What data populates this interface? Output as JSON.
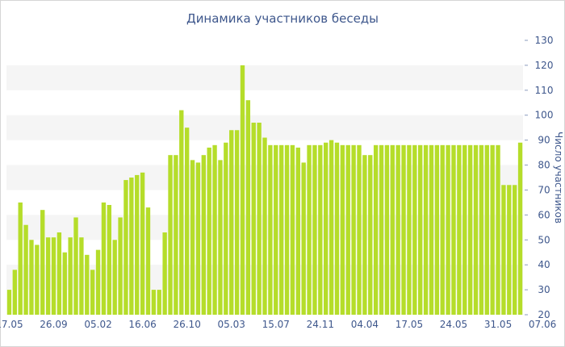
{
  "chart_data": {
    "type": "bar",
    "title": "Динамика участников беседы",
    "xlabel": "",
    "ylabel": "Число участников",
    "ylim": [
      20,
      130
    ],
    "yticks": [
      20,
      30,
      40,
      50,
      60,
      70,
      80,
      90,
      100,
      110,
      120,
      130
    ],
    "y_axis_side": "right",
    "bar_color": "#b5dd2a",
    "band_color": "#f5f5f5",
    "x_tick_labels": [
      {
        "label": "17.05",
        "index": 0
      },
      {
        "label": "26.09",
        "index": 8
      },
      {
        "label": "05.02",
        "index": 16
      },
      {
        "label": "16.06",
        "index": 24
      },
      {
        "label": "26.10",
        "index": 32
      },
      {
        "label": "05.03",
        "index": 40
      },
      {
        "label": "15.07",
        "index": 48
      },
      {
        "label": "24.11",
        "index": 56
      },
      {
        "label": "04.04",
        "index": 64
      },
      {
        "label": "17.05",
        "index": 72
      },
      {
        "label": "24.05",
        "index": 80
      },
      {
        "label": "31.05",
        "index": 88
      },
      {
        "label": "07.06",
        "index": 96
      }
    ],
    "values": [
      30,
      38,
      65,
      56,
      50,
      48,
      62,
      51,
      51,
      53,
      45,
      51,
      59,
      51,
      44,
      38,
      46,
      65,
      64,
      50,
      59,
      74,
      75,
      76,
      77,
      63,
      30,
      30,
      53,
      84,
      84,
      102,
      95,
      82,
      81,
      84,
      87,
      88,
      82,
      89,
      94,
      94,
      120,
      106,
      97,
      97,
      91,
      88,
      88,
      88,
      88,
      88,
      87,
      81,
      88,
      88,
      88,
      89,
      90,
      89,
      88,
      88,
      88,
      88,
      84,
      84,
      88,
      88,
      88,
      88,
      88,
      88,
      88,
      88,
      88,
      88,
      88,
      88,
      88,
      88,
      88,
      88,
      88,
      88,
      88,
      88,
      88,
      88,
      88,
      72,
      72,
      72,
      89
    ]
  }
}
